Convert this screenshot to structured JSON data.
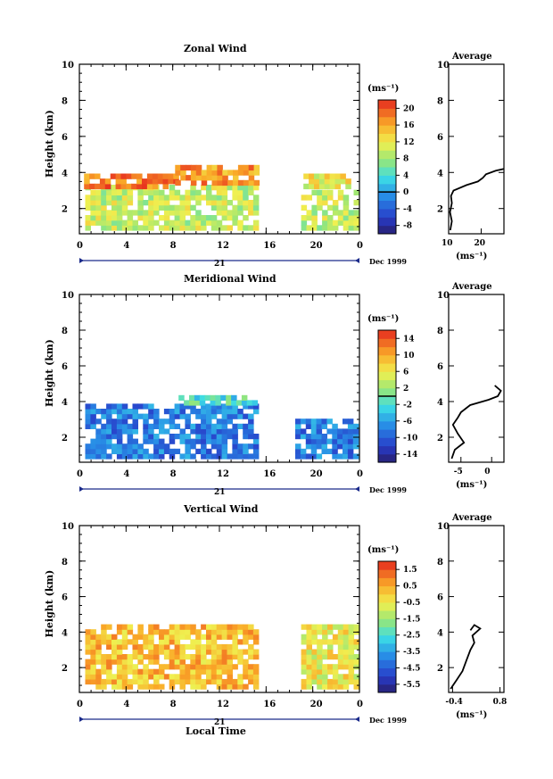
{
  "chart_data": [
    {
      "type": "heatmap",
      "title": "Zonal Wind",
      "ylabel": "Height (km)",
      "xlabel": "",
      "xlim": [
        0,
        24
      ],
      "ylim": [
        0.6,
        10
      ],
      "xticks": [
        "0",
        "4",
        "8",
        "12",
        "16",
        "20",
        "0"
      ],
      "yticks": [
        "2",
        "4",
        "6",
        "8",
        "10"
      ],
      "colorbar": {
        "unit": "(ms⁻¹)",
        "ticks": [
          "-8",
          "-4",
          "0",
          "4",
          "8",
          "12",
          "16",
          "20"
        ],
        "range": [
          -10,
          22
        ],
        "zero_line": 0
      },
      "data_blocks": [
        {
          "x": [
            0.5,
            15
          ],
          "y": [
            0.8,
            3.1
          ],
          "value": 10
        },
        {
          "x": [
            0.4,
            8.2
          ],
          "y": [
            3.1,
            3.8
          ],
          "value": 18
        },
        {
          "x": [
            8.2,
            15
          ],
          "y": [
            3.3,
            4.2
          ],
          "value": 17
        },
        {
          "x": [
            19,
            23.5
          ],
          "y": [
            0.8,
            3.0
          ],
          "value": 10
        },
        {
          "x": [
            19.2,
            23
          ],
          "y": [
            3.1,
            3.8
          ],
          "value": 12
        }
      ],
      "average": {
        "title": "Average",
        "xlim": [
          10,
          27
        ],
        "xticks": [
          "10",
          "20"
        ],
        "xlabel": "(ms⁻¹)",
        "profile": [
          [
            10.5,
            0.8
          ],
          [
            11.0,
            1.3
          ],
          [
            10.4,
            1.8
          ],
          [
            11.0,
            2.3
          ],
          [
            10.7,
            2.7
          ],
          [
            11.5,
            3.0
          ],
          [
            15.5,
            3.3
          ],
          [
            19,
            3.5
          ],
          [
            20.5,
            3.7
          ],
          [
            21.5,
            3.9
          ],
          [
            24.5,
            4.1
          ],
          [
            27,
            4.2
          ]
        ]
      }
    },
    {
      "type": "heatmap",
      "title": "Meridional Wind",
      "ylabel": "Height (km)",
      "xlabel": "",
      "xlim": [
        0,
        24
      ],
      "ylim": [
        0.6,
        10
      ],
      "xticks": [
        "0",
        "4",
        "8",
        "12",
        "16",
        "20",
        "0"
      ],
      "yticks": [
        "2",
        "4",
        "6",
        "8",
        "10"
      ],
      "colorbar": {
        "unit": "(ms⁻¹)",
        "ticks": [
          "-14",
          "-10",
          "-6",
          "-2",
          "2",
          "6",
          "10",
          "14"
        ],
        "range": [
          -16,
          16
        ],
        "zero_line": 0
      },
      "data_blocks": [
        {
          "x": [
            0.5,
            15
          ],
          "y": [
            0.8,
            3.8
          ],
          "value": -8
        },
        {
          "x": [
            8.5,
            15
          ],
          "y": [
            3.8,
            4.3
          ],
          "value": -2
        },
        {
          "x": [
            18.5,
            23.5
          ],
          "y": [
            0.8,
            3.0
          ],
          "value": -8
        }
      ],
      "average": {
        "title": "Average",
        "xlim": [
          -7,
          2
        ],
        "xticks": [
          "-5",
          "0"
        ],
        "xlabel": "(ms⁻¹)",
        "profile": [
          [
            -6.5,
            0.8
          ],
          [
            -6.0,
            1.3
          ],
          [
            -4.5,
            1.7
          ],
          [
            -5.5,
            2.2
          ],
          [
            -6.3,
            2.7
          ],
          [
            -5.5,
            3.1
          ],
          [
            -5.0,
            3.4
          ],
          [
            -3.5,
            3.8
          ],
          [
            -0.5,
            4.1
          ],
          [
            1.0,
            4.3
          ],
          [
            1.5,
            4.6
          ],
          [
            0.5,
            4.9
          ]
        ]
      }
    },
    {
      "type": "heatmap",
      "title": "Vertical Wind",
      "ylabel": "Height (km)",
      "xlabel": "Local Time",
      "xlim": [
        0,
        24
      ],
      "ylim": [
        0.6,
        10
      ],
      "xticks": [
        "0",
        "4",
        "8",
        "12",
        "16",
        "20",
        "0"
      ],
      "yticks": [
        "2",
        "4",
        "6",
        "8",
        "10"
      ],
      "colorbar": {
        "unit": "(ms⁻¹)",
        "ticks": [
          "-5.5",
          "-4.5",
          "-3.5",
          "-2.5",
          "-1.5",
          "-0.5",
          "0.5",
          "1.5"
        ],
        "range": [
          -6,
          2
        ],
        "zero_line": null
      },
      "data_blocks": [
        {
          "x": [
            0.5,
            15
          ],
          "y": [
            0.8,
            4.3
          ],
          "value": 0.2
        },
        {
          "x": [
            19,
            23.5
          ],
          "y": [
            0.8,
            4.2
          ],
          "value": -0.5
        }
      ],
      "average": {
        "title": "Average",
        "xlim": [
          -0.5,
          0.9
        ],
        "xticks": [
          "-0.4",
          "0.8"
        ],
        "xlabel": "(ms⁻¹)",
        "profile": [
          [
            -0.45,
            0.8
          ],
          [
            -0.3,
            1.3
          ],
          [
            -0.15,
            1.8
          ],
          [
            -0.05,
            2.4
          ],
          [
            0.05,
            3.0
          ],
          [
            0.15,
            3.4
          ],
          [
            0.1,
            3.8
          ],
          [
            0.3,
            4.2
          ],
          [
            0.15,
            4.4
          ],
          [
            0.05,
            4.1
          ]
        ]
      }
    }
  ],
  "date_axis": {
    "day": "21",
    "label": "Dec 1999"
  }
}
